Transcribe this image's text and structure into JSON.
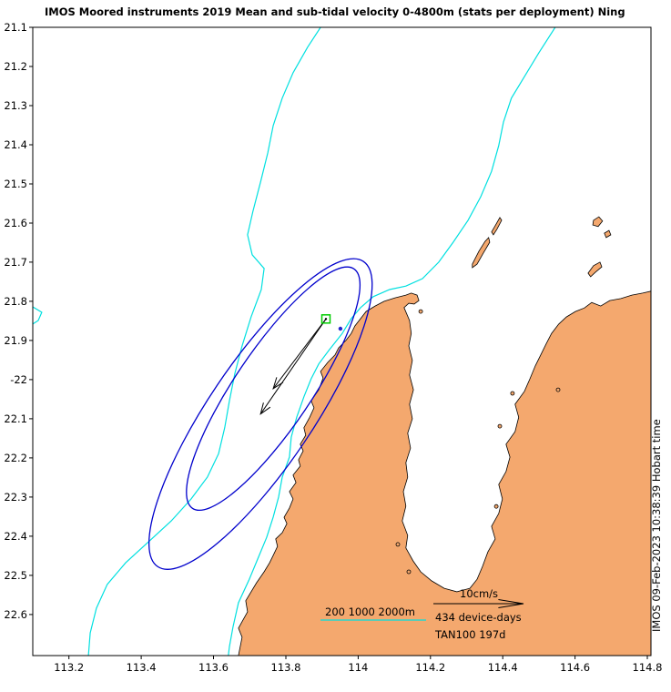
{
  "title": "IMOS Moored instruments 2019 Mean and sub-tidal velocity 0-4800m (stats per deployment) Ning",
  "watermark": "IMOS 09-Feb-2023 10:38:39 Hobart time",
  "colors": {
    "land": "#F4A86E",
    "coastline": "#000000",
    "contour": "#00E0E0",
    "ellipse": "#0000CC",
    "vector": "#000000",
    "marker": "#00CC00",
    "point": "#2222CC"
  },
  "chart_data": {
    "type": "map",
    "title": "IMOS Moored instruments 2019 Mean and sub-tidal velocity 0-4800m (stats per deployment) Ning",
    "axes": {
      "lon_range": [
        113.1,
        114.81
      ],
      "lat_range": [
        -22.705,
        -21.1
      ],
      "x_tick_values": [
        113.2,
        113.4,
        113.6,
        113.8,
        114.0,
        114.2,
        114.4,
        114.6,
        114.8
      ],
      "x_tick_labels": [
        "113.2",
        "113.4",
        "113.6",
        "113.8",
        "114",
        "114.2",
        "114.4",
        "114.6",
        "114.8"
      ],
      "y_tick_values": [
        -21.1,
        -21.2,
        -21.3,
        -21.4,
        -21.5,
        -21.6,
        -21.7,
        -21.8,
        -21.9,
        -22.0,
        -22.1,
        -22.2,
        -22.3,
        -22.4,
        -22.5,
        -22.6
      ],
      "y_tick_labels": [
        "21.1",
        "21.2",
        "21.3",
        "21.4",
        "21.5",
        "21.6",
        "21.7",
        "21.8",
        "21.9",
        "-22",
        "22.1",
        "22.2",
        "22.3",
        "22.4",
        "22.5",
        "22.6"
      ]
    },
    "bathymetry_levels_m": [
      200,
      1000,
      2000
    ],
    "mooring": {
      "label": "TAN100",
      "days_label": "197d",
      "device_days": 434,
      "lon": 113.911,
      "lat": -21.845
    },
    "vectors": [
      {
        "to_lon": 113.73,
        "to_lat": -22.088
      },
      {
        "to_lon": 113.765,
        "to_lat": -22.023
      }
    ],
    "ellipses": [
      {
        "lon": 113.73,
        "lat": -22.088,
        "semi_major_deg": 0.47,
        "semi_minor_deg": 0.133,
        "bearing_deg": 34
      },
      {
        "lon": 113.765,
        "lat": -22.023,
        "semi_major_deg": 0.369,
        "semi_minor_deg": 0.098,
        "bearing_deg": 34
      }
    ],
    "extra_point": {
      "lon": 113.951,
      "lat": -21.87
    },
    "legend": {
      "contour_label": "200 1000 2000m",
      "scale_label": "10cm/s",
      "device_days_label": "434 device-days",
      "deployment_label": "TAN100 197d"
    },
    "contours": [
      [
        [
          113.896,
          -21.1
        ],
        [
          113.86,
          -21.151
        ],
        [
          113.82,
          -21.216
        ],
        [
          113.79,
          -21.281
        ],
        [
          113.765,
          -21.351
        ],
        [
          113.75,
          -21.421
        ],
        [
          113.73,
          -21.495
        ],
        [
          113.709,
          -21.57
        ],
        [
          113.694,
          -21.63
        ],
        [
          113.707,
          -21.681
        ],
        [
          113.74,
          -21.716
        ],
        [
          113.732,
          -21.77
        ],
        [
          113.704,
          -21.84
        ],
        [
          113.679,
          -21.914
        ],
        [
          113.659,
          -21.984
        ],
        [
          113.644,
          -22.054
        ],
        [
          113.631,
          -22.123
        ],
        [
          113.614,
          -22.189
        ],
        [
          113.583,
          -22.249
        ],
        [
          113.538,
          -22.305
        ],
        [
          113.483,
          -22.361
        ],
        [
          113.417,
          -22.417
        ],
        [
          113.357,
          -22.468
        ],
        [
          113.306,
          -22.523
        ],
        [
          113.276,
          -22.584
        ],
        [
          113.259,
          -22.647
        ],
        [
          113.254,
          -22.705
        ]
      ],
      [
        [
          114.545,
          -21.1
        ],
        [
          114.5,
          -21.165
        ],
        [
          114.46,
          -21.226
        ],
        [
          114.424,
          -21.281
        ],
        [
          114.402,
          -21.342
        ],
        [
          114.389,
          -21.402
        ],
        [
          114.369,
          -21.468
        ],
        [
          114.339,
          -21.533
        ],
        [
          114.304,
          -21.593
        ],
        [
          114.263,
          -21.649
        ],
        [
          114.223,
          -21.7
        ],
        [
          114.178,
          -21.742
        ],
        [
          114.132,
          -21.761
        ],
        [
          114.087,
          -21.77
        ],
        [
          114.042,
          -21.788
        ],
        [
          114.007,
          -21.816
        ],
        [
          113.981,
          -21.844
        ],
        [
          113.956,
          -21.882
        ],
        [
          113.921,
          -21.923
        ],
        [
          113.891,
          -21.96
        ],
        [
          113.87,
          -21.998
        ],
        [
          113.85,
          -22.044
        ],
        [
          113.83,
          -22.096
        ],
        [
          113.815,
          -22.147
        ],
        [
          113.81,
          -22.198
        ],
        [
          113.79,
          -22.249
        ],
        [
          113.78,
          -22.3
        ],
        [
          113.765,
          -22.351
        ],
        [
          113.747,
          -22.403
        ],
        [
          113.724,
          -22.454
        ],
        [
          113.699,
          -22.51
        ],
        [
          113.669,
          -22.57
        ],
        [
          113.654,
          -22.631
        ],
        [
          113.644,
          -22.682
        ],
        [
          113.641,
          -22.705
        ]
      ],
      [
        [
          113.1,
          -21.814
        ],
        [
          113.125,
          -21.828
        ],
        [
          113.115,
          -21.849
        ],
        [
          113.1,
          -21.858
        ]
      ]
    ],
    "coastline": {
      "mainland": [
        [
          113.669,
          -22.705
        ],
        [
          113.679,
          -22.658
        ],
        [
          113.669,
          -22.635
        ],
        [
          113.694,
          -22.593
        ],
        [
          113.689,
          -22.565
        ],
        [
          113.719,
          -22.519
        ],
        [
          113.74,
          -22.491
        ],
        [
          113.755,
          -22.468
        ],
        [
          113.765,
          -22.449
        ],
        [
          113.777,
          -22.426
        ],
        [
          113.772,
          -22.407
        ],
        [
          113.79,
          -22.391
        ],
        [
          113.803,
          -22.368
        ],
        [
          113.795,
          -22.352
        ],
        [
          113.81,
          -22.328
        ],
        [
          113.82,
          -22.305
        ],
        [
          113.81,
          -22.286
        ],
        [
          113.828,
          -22.263
        ],
        [
          113.82,
          -22.244
        ],
        [
          113.84,
          -22.221
        ],
        [
          113.835,
          -22.205
        ],
        [
          113.848,
          -22.182
        ],
        [
          113.84,
          -22.165
        ],
        [
          113.855,
          -22.142
        ],
        [
          113.85,
          -22.123
        ],
        [
          113.866,
          -22.096
        ],
        [
          113.878,
          -22.072
        ],
        [
          113.87,
          -22.054
        ],
        [
          113.891,
          -22.026
        ],
        [
          113.903,
          -21.996
        ],
        [
          113.896,
          -21.979
        ],
        [
          113.916,
          -21.956
        ],
        [
          113.936,
          -21.937
        ],
        [
          113.946,
          -21.919
        ],
        [
          113.966,
          -21.9
        ],
        [
          113.981,
          -21.882
        ],
        [
          113.991,
          -21.863
        ],
        [
          114.007,
          -21.844
        ],
        [
          114.022,
          -21.826
        ],
        [
          114.047,
          -21.812
        ],
        [
          114.072,
          -21.8
        ],
        [
          114.102,
          -21.791
        ],
        [
          114.132,
          -21.784
        ],
        [
          114.147,
          -21.779
        ],
        [
          114.163,
          -21.784
        ],
        [
          114.168,
          -21.798
        ],
        [
          114.155,
          -21.807
        ],
        [
          114.14,
          -21.805
        ],
        [
          114.127,
          -21.816
        ],
        [
          114.142,
          -21.849
        ],
        [
          114.147,
          -21.882
        ],
        [
          114.14,
          -21.914
        ],
        [
          114.15,
          -21.951
        ],
        [
          114.142,
          -21.988
        ],
        [
          114.153,
          -22.026
        ],
        [
          114.142,
          -22.063
        ],
        [
          114.15,
          -22.1
        ],
        [
          114.137,
          -22.137
        ],
        [
          114.145,
          -22.175
        ],
        [
          114.132,
          -22.212
        ],
        [
          114.137,
          -22.249
        ],
        [
          114.125,
          -22.286
        ],
        [
          114.132,
          -22.323
        ],
        [
          114.122,
          -22.361
        ],
        [
          114.137,
          -22.398
        ],
        [
          114.132,
          -22.43
        ],
        [
          114.152,
          -22.463
        ],
        [
          114.173,
          -22.491
        ],
        [
          114.203,
          -22.514
        ],
        [
          114.238,
          -22.533
        ],
        [
          114.273,
          -22.542
        ],
        [
          114.309,
          -22.533
        ],
        [
          114.329,
          -22.51
        ],
        [
          114.344,
          -22.477
        ],
        [
          114.359,
          -22.44
        ],
        [
          114.379,
          -22.407
        ],
        [
          114.369,
          -22.375
        ],
        [
          114.389,
          -22.342
        ],
        [
          114.399,
          -22.305
        ],
        [
          114.389,
          -22.268
        ],
        [
          114.409,
          -22.235
        ],
        [
          114.42,
          -22.198
        ],
        [
          114.409,
          -22.165
        ],
        [
          114.434,
          -22.133
        ],
        [
          114.444,
          -22.096
        ],
        [
          114.434,
          -22.063
        ],
        [
          114.46,
          -22.03
        ],
        [
          114.475,
          -21.998
        ],
        [
          114.49,
          -21.965
        ],
        [
          114.505,
          -21.937
        ],
        [
          114.52,
          -21.909
        ],
        [
          114.535,
          -21.882
        ],
        [
          114.555,
          -21.858
        ],
        [
          114.576,
          -21.84
        ],
        [
          114.601,
          -21.826
        ],
        [
          114.626,
          -21.817
        ],
        [
          114.646,
          -21.803
        ],
        [
          114.671,
          -21.812
        ],
        [
          114.696,
          -21.798
        ],
        [
          114.727,
          -21.793
        ],
        [
          114.757,
          -21.784
        ],
        [
          114.787,
          -21.779
        ],
        [
          114.81,
          -21.774
        ],
        [
          114.81,
          -22.705
        ]
      ],
      "islands": [
        [
          [
            114.316,
            -21.705
          ],
          [
            114.334,
            -21.672
          ],
          [
            114.351,
            -21.647
          ],
          [
            114.361,
            -21.637
          ],
          [
            114.364,
            -21.649
          ],
          [
            114.346,
            -21.677
          ],
          [
            114.329,
            -21.705
          ],
          [
            114.316,
            -21.714
          ]
        ],
        [
          [
            114.369,
            -21.623
          ],
          [
            114.382,
            -21.602
          ],
          [
            114.392,
            -21.586
          ],
          [
            114.397,
            -21.593
          ],
          [
            114.384,
            -21.616
          ],
          [
            114.374,
            -21.63
          ]
        ],
        [
          [
            114.651,
            -21.593
          ],
          [
            114.666,
            -21.584
          ],
          [
            114.676,
            -21.595
          ],
          [
            114.664,
            -21.609
          ],
          [
            114.649,
            -21.605
          ]
        ],
        [
          [
            114.681,
            -21.626
          ],
          [
            114.694,
            -21.619
          ],
          [
            114.699,
            -21.63
          ],
          [
            114.686,
            -21.637
          ]
        ],
        [
          [
            114.636,
            -21.728
          ],
          [
            114.651,
            -21.709
          ],
          [
            114.669,
            -21.7
          ],
          [
            114.674,
            -21.712
          ],
          [
            114.656,
            -21.726
          ],
          [
            114.643,
            -21.737
          ]
        ]
      ],
      "islets": [
        [
          114.427,
          -22.035
        ],
        [
          114.392,
          -22.119
        ],
        [
          114.382,
          -22.324
        ],
        [
          114.14,
          -22.491
        ],
        [
          114.11,
          -22.421
        ],
        [
          114.173,
          -21.826
        ],
        [
          114.553,
          -22.026
        ]
      ]
    }
  }
}
